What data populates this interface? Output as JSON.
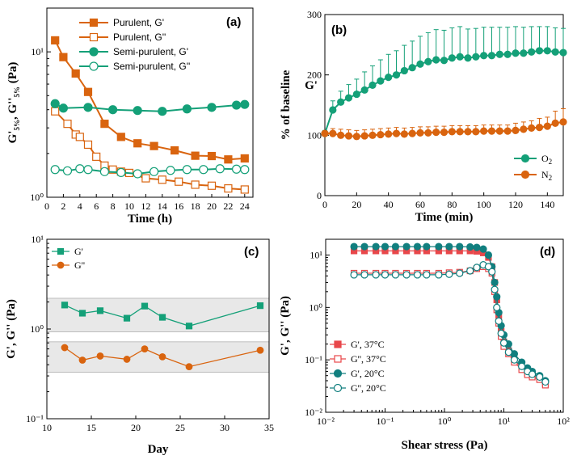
{
  "colors": {
    "orange": "#D9640F",
    "green": "#14A078",
    "red": "#E8474A",
    "teal": "#117F7F",
    "band": "#E8E8E8"
  },
  "chart_data": [
    {
      "panel": "(a)",
      "type": "line",
      "xlabel": "Time (h)",
      "ylabel": "G'5%, G''5% (Pa)",
      "yscale": "log",
      "xlim": [
        0,
        25
      ],
      "ylim": [
        1,
        20
      ],
      "xticks": [
        "0",
        "2",
        "4",
        "6",
        "8",
        "10",
        "12",
        "14",
        "16",
        "18",
        "20",
        "22",
        "24"
      ],
      "yticks": [
        "10⁰",
        "10¹"
      ],
      "series": [
        {
          "name": "Purulent, G'",
          "x": [
            1,
            2,
            3.5,
            5,
            7,
            9,
            11,
            13,
            15.5,
            18,
            20,
            22,
            24
          ],
          "y": [
            12,
            9.2,
            7.1,
            5.3,
            3.2,
            2.6,
            2.35,
            2.25,
            2.1,
            1.93,
            1.92,
            1.82,
            1.85
          ]
        },
        {
          "name": "Purulent, G''",
          "x": [
            1,
            2.5,
            3.5,
            4,
            5,
            6,
            7,
            8,
            9,
            10,
            12,
            14,
            16,
            18,
            20,
            22,
            24
          ],
          "y": [
            3.9,
            3.2,
            2.7,
            2.6,
            2.3,
            1.9,
            1.65,
            1.55,
            1.5,
            1.47,
            1.35,
            1.32,
            1.28,
            1.22,
            1.2,
            1.15,
            1.13
          ]
        },
        {
          "name": "Semi-purulent, G'",
          "x": [
            1,
            2,
            5,
            8,
            11,
            14,
            17,
            20,
            23,
            24
          ],
          "y": [
            4.4,
            4.1,
            4.15,
            4,
            3.95,
            3.9,
            4.05,
            4.15,
            4.3,
            4.35
          ]
        },
        {
          "name": "Semi-purulent, G''",
          "x": [
            1,
            2.5,
            4,
            5,
            7,
            9,
            11,
            13,
            15,
            17,
            19,
            21,
            23,
            24
          ],
          "y": [
            1.55,
            1.52,
            1.57,
            1.55,
            1.5,
            1.48,
            1.45,
            1.5,
            1.53,
            1.55,
            1.55,
            1.57,
            1.56,
            1.55
          ]
        }
      ]
    },
    {
      "panel": "(b)",
      "type": "line",
      "xlabel": "Time (min)",
      "ylabel": "% of baseline",
      "ylabel2": "G'",
      "xlim": [
        0,
        150
      ],
      "ylim": [
        0,
        300
      ],
      "xticks": [
        "0",
        "20",
        "40",
        "60",
        "80",
        "100",
        "120",
        "140"
      ],
      "yticks": [
        "0",
        "100",
        "200",
        "300"
      ],
      "series": [
        {
          "name": "O2",
          "label_base": "O",
          "label_sub": "2",
          "x": [
            0,
            5,
            10,
            15,
            20,
            25,
            30,
            35,
            40,
            45,
            50,
            55,
            60,
            65,
            70,
            75,
            80,
            85,
            90,
            95,
            100,
            105,
            110,
            115,
            120,
            125,
            130,
            135,
            140,
            145,
            150
          ],
          "y": [
            103,
            142,
            155,
            162,
            168,
            175,
            183,
            190,
            196,
            200,
            207,
            212,
            218,
            222,
            225,
            224,
            228,
            230,
            228,
            230,
            232,
            232,
            234,
            234,
            236,
            236,
            238,
            240,
            240,
            238,
            237
          ],
          "err_up": [
            5,
            15,
            18,
            22,
            25,
            30,
            32,
            35,
            38,
            40,
            42,
            44,
            46,
            48,
            50,
            50,
            50,
            50,
            48,
            47,
            47,
            47,
            45,
            45,
            44,
            43,
            42,
            40,
            40,
            40,
            40
          ]
        },
        {
          "name": "N2",
          "label_base": "N",
          "label_sub": "2",
          "x": [
            0,
            5,
            10,
            15,
            20,
            25,
            30,
            35,
            40,
            45,
            50,
            55,
            60,
            65,
            70,
            75,
            80,
            85,
            90,
            95,
            100,
            105,
            110,
            115,
            120,
            125,
            130,
            135,
            140,
            145,
            150
          ],
          "y": [
            103,
            103,
            100,
            99,
            98,
            99,
            100,
            101,
            102,
            103,
            102,
            103,
            104,
            104,
            105,
            105,
            106,
            106,
            106,
            106,
            107,
            107,
            107,
            107,
            108,
            110,
            112,
            113,
            115,
            120,
            122
          ],
          "err_up": [
            3,
            8,
            10,
            10,
            10,
            10,
            10,
            10,
            10,
            10,
            10,
            10,
            10,
            10,
            10,
            10,
            10,
            10,
            10,
            10,
            10,
            10,
            10,
            10,
            12,
            12,
            12,
            15,
            15,
            20,
            22
          ]
        }
      ]
    },
    {
      "panel": "(c)",
      "type": "line",
      "xlabel": "Day",
      "ylabel": "G', G'' (Pa)",
      "yscale": "log",
      "xlim": [
        10,
        35
      ],
      "ylim": [
        0.1,
        10
      ],
      "xticks": [
        "10",
        "15",
        "20",
        "25",
        "30",
        "35"
      ],
      "yticks": [
        "10⁻¹",
        "10⁰",
        "10¹"
      ],
      "bands": [
        [
          0.93,
          2.2
        ],
        [
          0.33,
          0.72
        ]
      ],
      "series": [
        {
          "name": "G'",
          "x": [
            12,
            14,
            16,
            19,
            21,
            23,
            26,
            34
          ],
          "y": [
            1.85,
            1.5,
            1.6,
            1.32,
            1.8,
            1.35,
            1.08,
            1.82
          ]
        },
        {
          "name": "G''",
          "x": [
            12,
            14,
            16,
            19,
            21,
            23,
            26,
            34
          ],
          "y": [
            0.62,
            0.45,
            0.5,
            0.46,
            0.6,
            0.49,
            0.38,
            0.58
          ]
        }
      ]
    },
    {
      "panel": "(d)",
      "type": "line",
      "xlabel": "Shear stress (Pa)",
      "ylabel": "G', G'' (Pa)",
      "xscale": "log",
      "yscale": "log",
      "xlim": [
        0.01,
        100
      ],
      "ylim": [
        0.01,
        20
      ],
      "xticks": [
        "10⁻²",
        "10⁻¹",
        "10⁰",
        "10¹",
        "10²"
      ],
      "yticks": [
        "10⁻²",
        "10⁻¹",
        "10⁰",
        "10¹"
      ],
      "series": [
        {
          "name": "G', 37°C",
          "x": [
            0.03,
            0.045,
            0.07,
            0.1,
            0.15,
            0.23,
            0.35,
            0.5,
            0.8,
            1.2,
            1.8,
            2.7,
            3.5,
            4.5,
            5.5,
            6.3,
            7,
            7.6,
            8.2,
            9,
            10,
            12,
            15,
            20,
            25,
            30,
            40,
            50
          ],
          "y": [
            12,
            12,
            12,
            12,
            12,
            12,
            12,
            12,
            12,
            12,
            12,
            12,
            11.8,
            11,
            9,
            6,
            3,
            1.4,
            0.7,
            0.35,
            0.22,
            0.15,
            0.1,
            0.07,
            0.055,
            0.05,
            0.045,
            0.035
          ]
        },
        {
          "name": "G'', 37°C",
          "x": [
            0.03,
            0.045,
            0.07,
            0.1,
            0.15,
            0.23,
            0.35,
            0.5,
            0.8,
            1.2,
            1.8,
            2.7,
            3.5,
            4.5,
            5.5,
            6.3,
            7,
            7.6,
            8.2,
            9,
            10,
            12,
            15,
            20,
            25,
            30,
            40,
            50
          ],
          "y": [
            4.5,
            4.5,
            4.5,
            4.5,
            4.5,
            4.5,
            4.5,
            4.5,
            4.5,
            4.6,
            4.7,
            5,
            5.5,
            6,
            5.5,
            4.5,
            2,
            0.9,
            0.5,
            0.28,
            0.18,
            0.13,
            0.09,
            0.065,
            0.052,
            0.047,
            0.042,
            0.033
          ]
        },
        {
          "name": "G', 20°C",
          "x": [
            0.03,
            0.045,
            0.07,
            0.1,
            0.15,
            0.23,
            0.35,
            0.5,
            0.8,
            1.2,
            1.8,
            2.7,
            3.5,
            4.5,
            5.5,
            6.3,
            7,
            7.6,
            8.2,
            9,
            10,
            12,
            15,
            20,
            25,
            30,
            40,
            50
          ],
          "y": [
            14.5,
            14.5,
            14.5,
            14.5,
            14.5,
            14.5,
            14.5,
            14.5,
            14.5,
            14.5,
            14.5,
            14.3,
            14,
            13,
            10,
            6,
            3,
            1.6,
            0.8,
            0.45,
            0.3,
            0.2,
            0.13,
            0.09,
            0.07,
            0.06,
            0.05,
            0.04
          ]
        },
        {
          "name": "G'', 20°C",
          "x": [
            0.03,
            0.045,
            0.07,
            0.1,
            0.15,
            0.23,
            0.35,
            0.5,
            0.8,
            1.2,
            1.8,
            2.7,
            3.5,
            4.5,
            5.5,
            6.3,
            7,
            7.6,
            8.2,
            9,
            10,
            12,
            15,
            20,
            25,
            30,
            40,
            50
          ],
          "y": [
            4.2,
            4.2,
            4.2,
            4.2,
            4.2,
            4.2,
            4.2,
            4.2,
            4.2,
            4.3,
            4.5,
            5,
            5.8,
            6.5,
            6,
            4.8,
            2.2,
            1,
            0.55,
            0.32,
            0.21,
            0.14,
            0.1,
            0.075,
            0.06,
            0.053,
            0.047,
            0.038
          ]
        }
      ]
    }
  ]
}
